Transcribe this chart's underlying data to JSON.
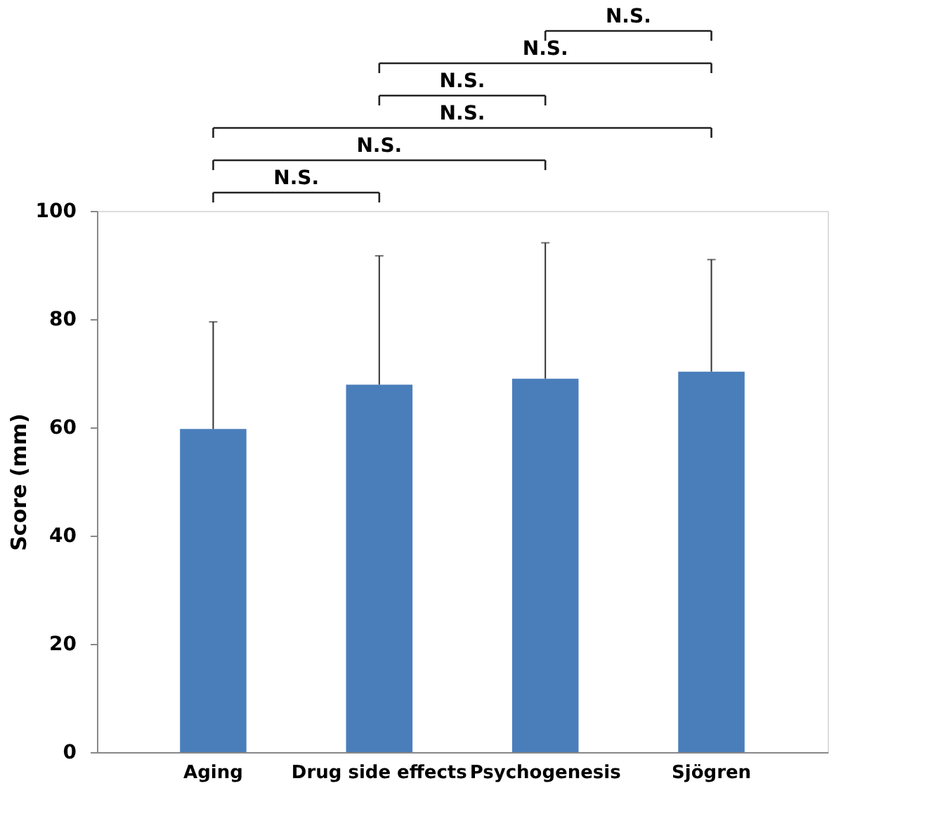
{
  "chart_data": {
    "type": "bar",
    "ylabel": "Score (mm)",
    "categories": [
      "Aging",
      "Drug side effects",
      "Psychogenesis",
      "Sjögren"
    ],
    "values": [
      59.7,
      67.9,
      69.0,
      70.3
    ],
    "errors": [
      [
        59.7,
        79.5
      ],
      [
        67.9,
        91.7
      ],
      [
        69.0,
        94.1
      ],
      [
        70.3,
        91.0
      ]
    ],
    "color": "#4a7ebb",
    "ylim": [
      0,
      100
    ],
    "yticks": [
      0,
      20,
      40,
      60,
      80,
      100
    ],
    "grid": false,
    "annotations": [
      "N.S.",
      "N.S.",
      "N.S.",
      "N.S.",
      "N.S.",
      "N.S."
    ]
  }
}
